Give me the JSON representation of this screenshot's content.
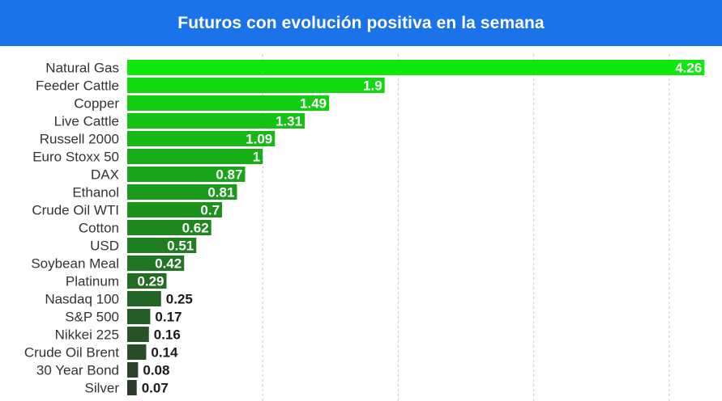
{
  "header": {
    "title": "Futuros con evolución positiva en la semana"
  },
  "colors": {
    "header_bg": "#1a73e8",
    "header_text": "#ffffff",
    "grid": "#cccccc",
    "bar_top": "#0de80d",
    "bar_bottom": "#2b3a2b",
    "label_inside": "#ffffff",
    "label_outside": "#1a1a1a"
  },
  "chart_data": {
    "type": "bar",
    "orientation": "horizontal",
    "title": "Futuros con evolución positiva en la semana",
    "categories": [
      "Natural Gas",
      "Feeder Cattle",
      "Copper",
      "Live Cattle",
      "Russell 2000",
      "Euro Stoxx 50",
      "DAX",
      "Ethanol",
      "Crude Oil WTI",
      "Cotton",
      "USD",
      "Soybean Meal",
      "Platinum",
      "Nasdaq 100",
      "S&P 500",
      "Nikkei 225",
      "Crude Oil Brent",
      "30 Year Bond",
      "Silver"
    ],
    "values": [
      4.26,
      1.9,
      1.49,
      1.31,
      1.09,
      1,
      0.87,
      0.81,
      0.7,
      0.62,
      0.51,
      0.42,
      0.29,
      0.25,
      0.17,
      0.16,
      0.14,
      0.08,
      0.07
    ],
    "labels": [
      "4.26",
      "1.9",
      "1.49",
      "1.31",
      "1.09",
      "1",
      "0.87",
      "0.81",
      "0.7",
      "0.62",
      "0.51",
      "0.42",
      "0.29",
      "0.25",
      "0.17",
      "0.16",
      "0.14",
      "0.08",
      "0.07"
    ],
    "xlim": [
      0,
      4.3
    ],
    "grid": true,
    "legend": "none"
  }
}
